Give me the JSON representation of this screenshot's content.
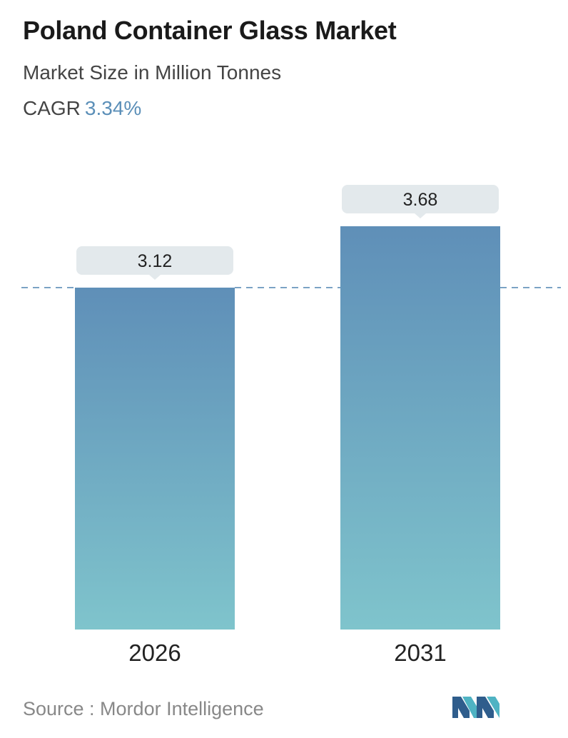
{
  "header": {
    "title": "Poland Container Glass Market",
    "subtitle": "Market Size in Million Tonnes",
    "cagr_label": "CAGR",
    "cagr_value": "3.34%"
  },
  "chart_data": {
    "type": "bar",
    "categories": [
      "2026",
      "2031"
    ],
    "values": [
      3.12,
      3.68
    ],
    "value_labels": [
      "3.12",
      "3.68"
    ],
    "ylim": [
      0,
      3.68
    ],
    "reference_line": 3.12,
    "grid": false,
    "colors": {
      "bar_top": "#5f8fb8",
      "bar_bottom": "#7fc4cc",
      "label_box": "#e3e9ec",
      "dash": "#5f8fb8"
    }
  },
  "footer": {
    "source": "Source :  Mordor Intelligence",
    "logo": "mordor-intelligence-logo"
  }
}
